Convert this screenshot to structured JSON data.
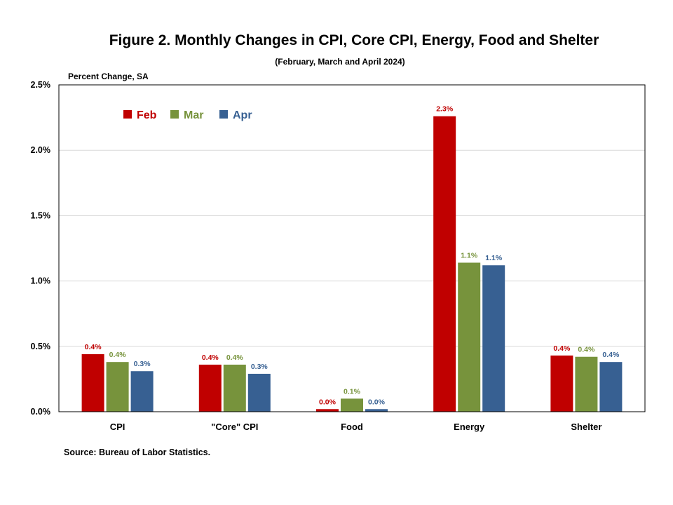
{
  "chart_data": {
    "type": "bar",
    "title": "Figure 2. Monthly Changes in CPI, Core CPI, Energy, Food and Shelter",
    "subtitle": "(February, March and April 2024)",
    "ylabel": "Percent Change, SA",
    "xlabel": "",
    "source": "Source: Bureau of Labor Statistics.",
    "categories": [
      "CPI",
      "\"Core\" CPI",
      "Food",
      "Energy",
      "Shelter"
    ],
    "ylim": [
      0,
      2.5
    ],
    "yticks": [
      "0.0%",
      "0.5%",
      "1.0%",
      "1.5%",
      "2.0%",
      "2.5%"
    ],
    "ytick_values": [
      0,
      0.5,
      1.0,
      1.5,
      2.0,
      2.5
    ],
    "grid": true,
    "legend": "top-left",
    "series": [
      {
        "name": "Feb",
        "color": "#c00000",
        "values": [
          0.44,
          0.36,
          0.02,
          2.26,
          0.43
        ],
        "labels": [
          "0.4%",
          "0.4%",
          "0.0%",
          "2.3%",
          "0.4%"
        ]
      },
      {
        "name": "Mar",
        "color": "#77933c",
        "values": [
          0.38,
          0.36,
          0.1,
          1.14,
          0.42
        ],
        "labels": [
          "0.4%",
          "0.4%",
          "0.1%",
          "1.1%",
          "0.4%"
        ]
      },
      {
        "name": "Apr",
        "color": "#376092",
        "values": [
          0.31,
          0.29,
          0.02,
          1.12,
          0.38
        ],
        "labels": [
          "0.3%",
          "0.3%",
          "0.0%",
          "1.1%",
          "0.4%"
        ]
      }
    ]
  }
}
